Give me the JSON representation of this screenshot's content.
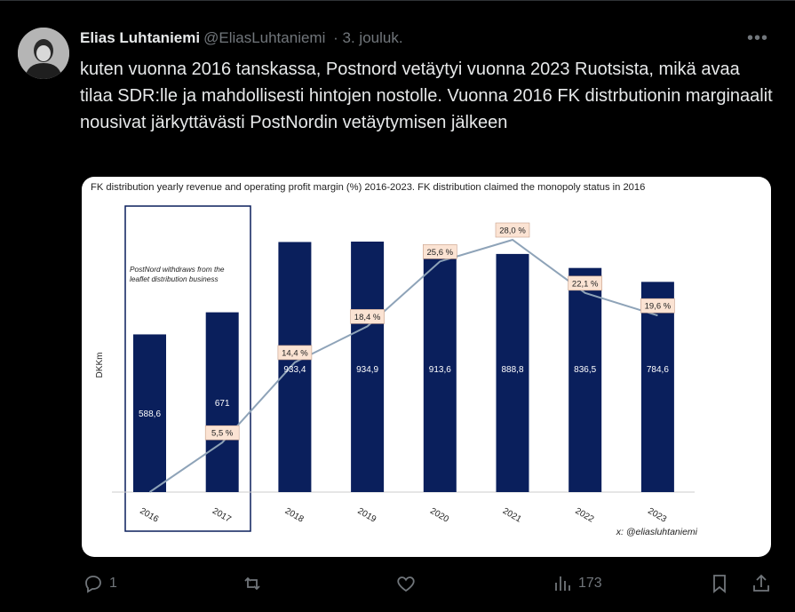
{
  "tweet": {
    "author_name": "Elias Luhtaniemi",
    "handle": "@EliasLuhtaniemi",
    "separator": "·",
    "date": "3. jouluk.",
    "text": "kuten vuonna 2016 tanskassa, Postnord vetäytyi vuonna 2023 Ruotsista, mikä avaa tilaa SDR:lle ja mahdollisesti hintojen nostolle. Vuonna 2016 FK distrbutionin marginaalit nousivat järkyttävästi PostNordin vetäytymisen jälkeen",
    "more_label": "•••"
  },
  "actions": {
    "reply_count": "1",
    "views_count": "173"
  },
  "chart_data": {
    "type": "bar",
    "title": "FK distribution yearly revenue and operating profit margin (%) 2016-2023. FK distribution claimed the monopoly status in 2016",
    "ylabel": "DKKm",
    "categories": [
      "2016",
      "2017",
      "2018",
      "2019",
      "2020",
      "2021",
      "2022",
      "2023"
    ],
    "series": [
      {
        "name": "Revenue (DKKm)",
        "type": "bar",
        "values": [
          588.6,
          671,
          933.4,
          934.9,
          913.6,
          888.8,
          836.5,
          784.6
        ],
        "labels": [
          "588,6",
          "671",
          "933,4",
          "934,9",
          "913,6",
          "888,8",
          "836,5",
          "784,6"
        ]
      },
      {
        "name": "Operating profit margin (%)",
        "type": "line",
        "values": [
          0,
          5.5,
          14.4,
          18.4,
          25.6,
          28.0,
          22.1,
          19.6
        ],
        "labels": [
          "",
          "5,5 %",
          "14,4 %",
          "18,4 %",
          "25,6 %",
          "28,0 %",
          "22,1 %",
          "19,6 %"
        ]
      }
    ],
    "annotation": "PostNord withdraws from the leaflet distribution business",
    "credit": "x: @eliasluhtaniemi",
    "bar_color": "#0a1f5c",
    "line_color": "#8ea3b8",
    "label_bg": "#fbe3d3"
  }
}
